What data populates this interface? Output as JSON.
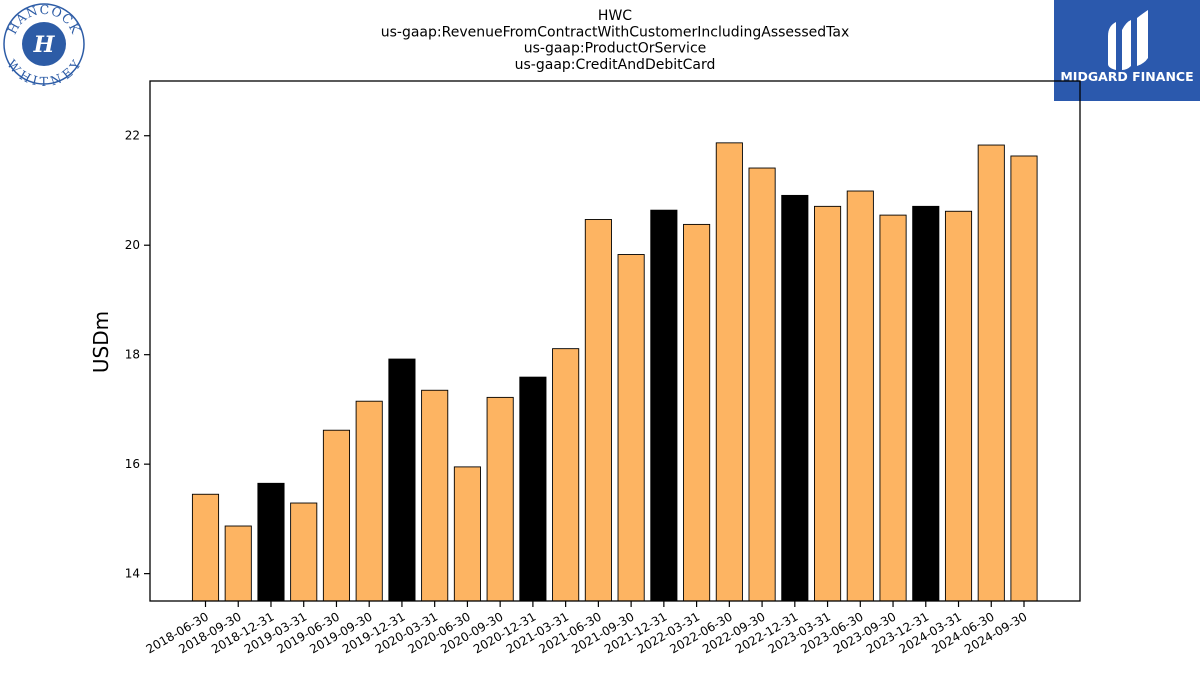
{
  "logos": {
    "left_top": "HANCOCK",
    "left_bottom": "WHITNEY",
    "right": "MIDGARD FINANCE"
  },
  "colors": {
    "bar_default": "#fdb462",
    "bar_highlight": "#000000",
    "brand_blue": "#2b59ad"
  },
  "chart_data": {
    "type": "bar",
    "title": [
      "HWC",
      "us-gaap:RevenueFromContractWithCustomerIncludingAssessedTax",
      "us-gaap:ProductOrService",
      "us-gaap:CreditAndDebitCard"
    ],
    "xlabel": "",
    "ylabel": "USDm",
    "ylim": [
      13.5,
      23.0
    ],
    "yticks": [
      14,
      16,
      18,
      20,
      22
    ],
    "grid": false,
    "categories": [
      "2018-06-30",
      "2018-09-30",
      "2018-12-31",
      "2019-03-31",
      "2019-06-30",
      "2019-09-30",
      "2019-12-31",
      "2020-03-31",
      "2020-06-30",
      "2020-09-30",
      "2020-12-31",
      "2021-03-31",
      "2021-06-30",
      "2021-09-30",
      "2021-12-31",
      "2022-03-31",
      "2022-06-30",
      "2022-09-30",
      "2022-12-31",
      "2023-03-31",
      "2023-06-30",
      "2023-09-30",
      "2023-12-31",
      "2024-03-31",
      "2024-06-30",
      "2024-09-30"
    ],
    "values": [
      15.45,
      14.87,
      15.65,
      15.29,
      16.62,
      17.15,
      17.92,
      17.35,
      15.95,
      17.22,
      17.59,
      18.11,
      20.47,
      19.83,
      20.64,
      20.38,
      21.87,
      21.41,
      20.91,
      20.71,
      20.99,
      20.55,
      20.71,
      20.62,
      21.83,
      21.63
    ],
    "highlight": [
      false,
      false,
      true,
      false,
      false,
      false,
      true,
      false,
      false,
      false,
      true,
      false,
      false,
      false,
      true,
      false,
      false,
      false,
      true,
      false,
      false,
      false,
      true,
      false,
      false,
      false
    ]
  }
}
